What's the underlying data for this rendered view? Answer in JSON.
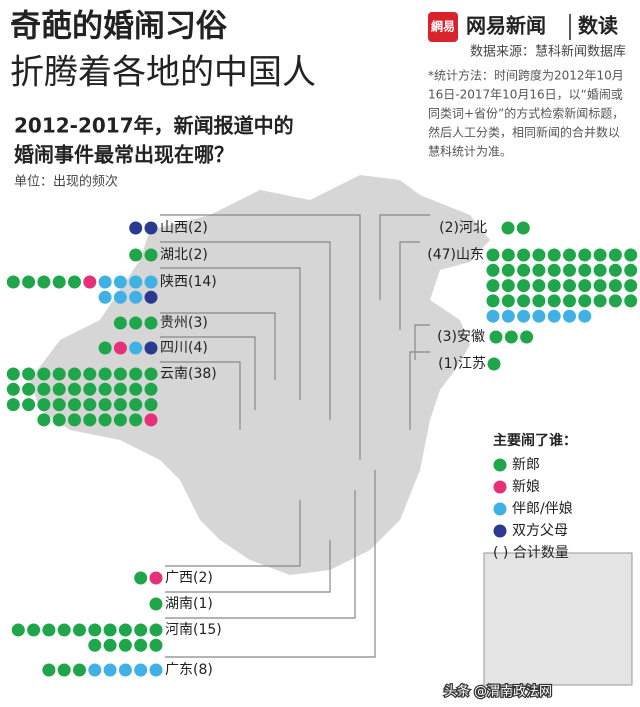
{
  "header": {
    "title_line1": "奇葩的婚闹习俗",
    "title_line2": "折腾着各地的中国人",
    "brand": "网易新闻",
    "brand_suffix": "数读",
    "logo": "網易",
    "source": "数据来源：慧科新闻数据库",
    "method": [
      "*统计方法：时间跨度为2012年10月",
      "16日-2017年10月16日，以“婚闹或",
      "同类词+省份”的方式检索新闻标题，",
      "然后人工分类，相同新闻的合并数以",
      "慧科统计为准。"
    ],
    "subtitle_line1": "2012-2017年，新闻报道中的",
    "subtitle_line2": "婚闹事件最常出现在哪？",
    "unit": "单位：出现的频次"
  },
  "legend": {
    "title": "主要闹了谁：",
    "items": [
      {
        "label": "新郎",
        "color": "#1fa64a"
      },
      {
        "label": "新娘",
        "color": "#e6307a"
      },
      {
        "label": "伴郎/伴娘",
        "color": "#3fb1e5"
      },
      {
        "label": "双方父母",
        "color": "#2b3990"
      }
    ],
    "total_note": "( ) 合计数量"
  },
  "provinces": [
    {
      "label": "山西(2)",
      "counts": [
        0,
        0,
        0,
        2
      ]
    },
    {
      "label": "湖北(2)",
      "counts": [
        2,
        0,
        0,
        0
      ]
    },
    {
      "label": "陕西(14)",
      "counts": [
        5,
        1,
        7,
        1
      ]
    },
    {
      "label": "贵州(3)",
      "counts": [
        3,
        0,
        0,
        0
      ]
    },
    {
      "label": "四川(4)",
      "counts": [
        1,
        1,
        1,
        1
      ]
    },
    {
      "label": "云南(38)",
      "counts": [
        37,
        1,
        0,
        0
      ]
    },
    {
      "label": "广西(2)",
      "counts": [
        1,
        1,
        0,
        0
      ]
    },
    {
      "label": "湖南(1)",
      "counts": [
        1,
        0,
        0,
        0
      ]
    },
    {
      "label": "河南(15)",
      "counts": [
        15,
        0,
        0,
        0
      ]
    },
    {
      "label": "广东(8)",
      "counts": [
        3,
        0,
        5,
        0
      ]
    },
    {
      "label": "(2)河北",
      "counts": [
        2,
        0,
        0,
        0
      ]
    },
    {
      "label": "(47)山东",
      "counts": [
        40,
        0,
        7,
        0
      ]
    },
    {
      "label": "(3)安徽",
      "counts": [
        3,
        0,
        0,
        0
      ]
    },
    {
      "label": "(1)江苏",
      "counts": [
        1,
        0,
        0,
        0
      ]
    }
  ],
  "watermark": "头条 @渭南政法网"
}
